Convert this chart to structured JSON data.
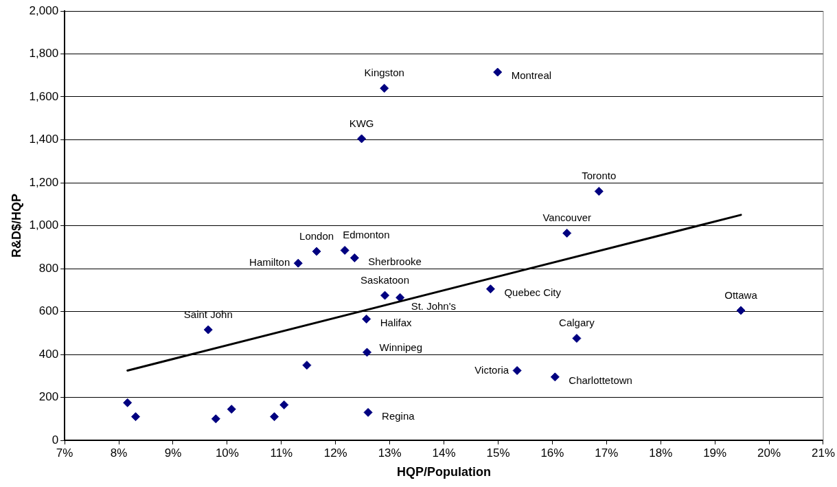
{
  "chart_data": {
    "type": "scatter",
    "xlabel": "HQP/Population",
    "ylabel": "R&D$/HQP",
    "xlim": [
      7,
      21
    ],
    "xticks": [
      {
        "value": 7,
        "label": "7%"
      },
      {
        "value": 8,
        "label": "8%"
      },
      {
        "value": 9,
        "label": "9%"
      },
      {
        "value": 10,
        "label": "10%"
      },
      {
        "value": 11,
        "label": "11%"
      },
      {
        "value": 12,
        "label": "12%"
      },
      {
        "value": 13,
        "label": "13%"
      },
      {
        "value": 14,
        "label": "14%"
      },
      {
        "value": 15,
        "label": "15%"
      },
      {
        "value": 16,
        "label": "16%"
      },
      {
        "value": 17,
        "label": "17%"
      },
      {
        "value": 18,
        "label": "18%"
      },
      {
        "value": 19,
        "label": "19%"
      },
      {
        "value": 20,
        "label": "20%"
      },
      {
        "value": 21,
        "label": "21%"
      }
    ],
    "ylim": [
      0,
      2000
    ],
    "yticks": [
      0,
      200,
      400,
      600,
      800,
      {
        "value": 1000,
        "label": "1,000"
      },
      {
        "value": 1200,
        "label": "1,200"
      },
      {
        "value": 1400,
        "label": "1,400"
      },
      {
        "value": 1600,
        "label": "1,600"
      },
      {
        "value": 1800,
        "label": "1,800"
      },
      {
        "value": 2000,
        "label": "2,000"
      }
    ],
    "grid": "y",
    "legend": false,
    "series": [
      {
        "marker": "diamond",
        "color": "#000080",
        "x": [
          12.9,
          12.48,
          14.99,
          16.86,
          16.27,
          11.65,
          12.17,
          11.31,
          12.35,
          12.91,
          13.19,
          14.86,
          19.48,
          9.65,
          12.57,
          16.45,
          12.58,
          15.35,
          16.05,
          12.6,
          8.16,
          8.31,
          9.79,
          10.08,
          10.87,
          11.05,
          11.47
        ],
        "values": [
          1640,
          1405,
          1715,
          1160,
          965,
          880,
          885,
          825,
          850,
          675,
          665,
          705,
          605,
          515,
          565,
          475,
          410,
          325,
          295,
          130,
          175,
          110,
          100,
          145,
          110,
          165,
          350
        ]
      },
      {
        "type": "line",
        "marker": "none",
        "color": "#000000",
        "x": [
          8.16,
          19.48
        ],
        "values": [
          325,
          1050
        ]
      }
    ],
    "annotations": [
      {
        "text": "Kingston",
        "x": 12.9,
        "y": 1640
      },
      {
        "text": "KWG",
        "x": 12.48,
        "y": 1405
      },
      {
        "text": "Montreal",
        "x": 14.99,
        "y": 1715
      },
      {
        "text": "Toronto",
        "x": 16.86,
        "y": 1160
      },
      {
        "text": "Vancouver",
        "x": 16.27,
        "y": 965
      },
      {
        "text": "London",
        "x": 11.65,
        "y": 880
      },
      {
        "text": "Edmonton",
        "x": 12.17,
        "y": 885
      },
      {
        "text": "Hamilton",
        "x": 11.31,
        "y": 825
      },
      {
        "text": "Sherbrooke",
        "x": 12.35,
        "y": 850
      },
      {
        "text": "Saskatoon",
        "x": 12.91,
        "y": 675
      },
      {
        "text": "St. John's",
        "x": 13.19,
        "y": 665
      },
      {
        "text": "Quebec City",
        "x": 14.86,
        "y": 705
      },
      {
        "text": "Ottawa",
        "x": 19.48,
        "y": 605
      },
      {
        "text": "Saint John",
        "x": 9.65,
        "y": 515
      },
      {
        "text": "Halifax",
        "x": 12.57,
        "y": 565
      },
      {
        "text": "Calgary",
        "x": 16.45,
        "y": 475
      },
      {
        "text": "Winnipeg",
        "x": 12.58,
        "y": 410
      },
      {
        "text": "Victoria",
        "x": 15.35,
        "y": 325
      },
      {
        "text": "Charlottetown",
        "x": 16.05,
        "y": 295
      },
      {
        "text": "Regina",
        "x": 12.6,
        "y": 130
      }
    ]
  }
}
